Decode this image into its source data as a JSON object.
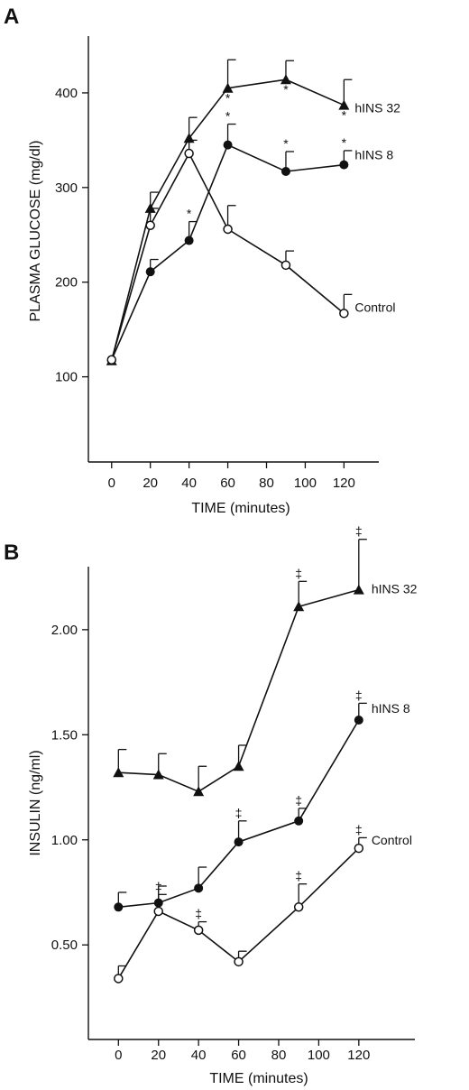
{
  "chart_data": [
    {
      "panel": "A",
      "type": "line",
      "xlabel": "TIME (minutes)",
      "ylabel": "PLASMA GLUCOSE (mg/dl)",
      "xlim": [
        -12,
        138
      ],
      "ylim": [
        10,
        460
      ],
      "xticks": [
        0,
        20,
        40,
        60,
        80,
        100,
        120
      ],
      "yticks": [
        100,
        200,
        300,
        400
      ],
      "series": [
        {
          "name": "hINS 32",
          "marker": "triangle",
          "color": "#111111",
          "x": [
            0,
            20,
            40,
            60,
            90,
            120
          ],
          "y": [
            117,
            278,
            352,
            405,
            414,
            387
          ],
          "err": [
            0,
            17,
            22,
            30,
            20,
            27
          ],
          "marks": [
            "",
            "",
            "",
            "*",
            "*",
            "*"
          ]
        },
        {
          "name": "hINS 8",
          "marker": "filled-circle",
          "color": "#111111",
          "x": [
            0,
            20,
            40,
            60,
            90,
            120
          ],
          "y": [
            118,
            211,
            244,
            345,
            317,
            324
          ],
          "err": [
            0,
            13,
            20,
            22,
            21,
            15
          ],
          "marks": [
            "",
            "",
            "*",
            "*",
            "*",
            "*"
          ]
        },
        {
          "name": "Control",
          "marker": "open-circle",
          "color": "#111111",
          "x": [
            0,
            20,
            40,
            60,
            90,
            120
          ],
          "y": [
            118,
            260,
            336,
            256,
            218,
            167
          ],
          "err": [
            0,
            18,
            14,
            25,
            15,
            20
          ],
          "marks": [
            "",
            "",
            "",
            "",
            "",
            ""
          ]
        }
      ]
    },
    {
      "panel": "B",
      "type": "line",
      "xlabel": "TIME (minutes)",
      "ylabel": "INSULIN (ng/ml)",
      "xlim": [
        -15,
        148
      ],
      "ylim": [
        0.05,
        2.3
      ],
      "xticks": [
        0,
        20,
        40,
        60,
        80,
        100,
        120
      ],
      "yticks": [
        0.5,
        1.0,
        1.5,
        2.0
      ],
      "ytick_labels": [
        "0.50",
        "1.00",
        "1.50",
        "2.00"
      ],
      "series": [
        {
          "name": "hINS 32",
          "marker": "triangle",
          "color": "#111111",
          "x": [
            0,
            20,
            40,
            60,
            90,
            120
          ],
          "y": [
            1.32,
            1.31,
            1.23,
            1.35,
            2.11,
            2.19
          ],
          "err": [
            0.11,
            0.1,
            0.12,
            0.1,
            0.12,
            0.24
          ],
          "marks": [
            "",
            "",
            "",
            "",
            "‡",
            "‡"
          ]
        },
        {
          "name": "hINS 8",
          "marker": "filled-circle",
          "color": "#111111",
          "x": [
            0,
            20,
            40,
            60,
            90,
            120
          ],
          "y": [
            0.68,
            0.7,
            0.77,
            0.99,
            1.09,
            1.57
          ],
          "err": [
            0.07,
            0.08,
            0.1,
            0.1,
            0.06,
            0.08
          ],
          "marks": [
            "",
            "",
            "",
            "‡",
            "‡",
            "‡"
          ]
        },
        {
          "name": "Control",
          "marker": "open-circle",
          "color": "#111111",
          "x": [
            0,
            20,
            40,
            60,
            90,
            120
          ],
          "y": [
            0.34,
            0.66,
            0.57,
            0.42,
            0.68,
            0.96
          ],
          "err": [
            0.06,
            0.08,
            0.04,
            0.05,
            0.11,
            0.05
          ],
          "marks": [
            "",
            "‡",
            "‡",
            "",
            "‡",
            "‡"
          ]
        }
      ]
    }
  ]
}
